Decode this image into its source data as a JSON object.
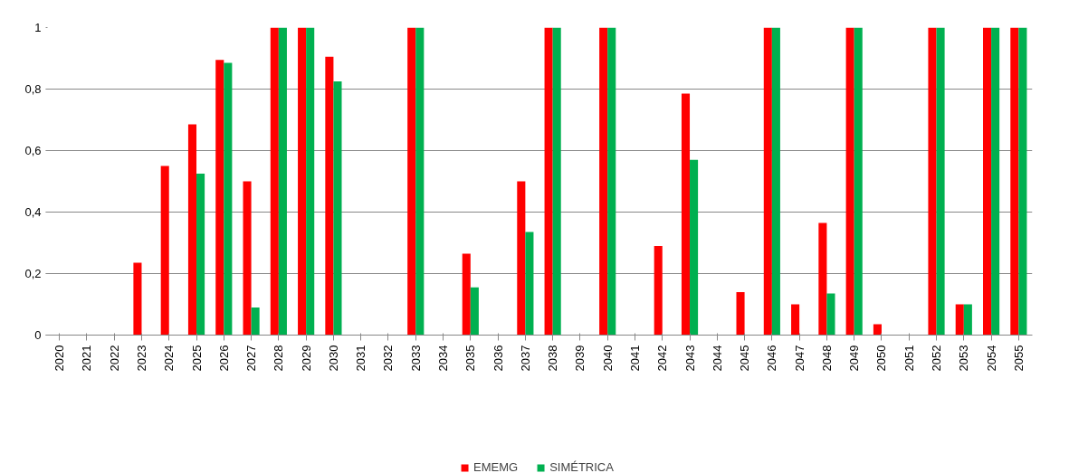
{
  "chart_data": {
    "type": "bar",
    "categories": [
      "2020",
      "2021",
      "2022",
      "2023",
      "2024",
      "2025",
      "2026",
      "2027",
      "2028",
      "2029",
      "2030",
      "2031",
      "2032",
      "2033",
      "2034",
      "2035",
      "2036",
      "2037",
      "2038",
      "2039",
      "2040",
      "2041",
      "2042",
      "2043",
      "2044",
      "2045",
      "2046",
      "2047",
      "2048",
      "2049",
      "2050",
      "2051",
      "2052",
      "2053",
      "2054",
      "2055"
    ],
    "series": [
      {
        "name": "EMEMG",
        "color": "#ff0000",
        "values": [
          0,
          0,
          0,
          0.235,
          0.55,
          0.685,
          0.895,
          0.5,
          1,
          1,
          0.905,
          0,
          0,
          1,
          0,
          0.265,
          0,
          0.5,
          1,
          0,
          1,
          0,
          0.29,
          0.785,
          0,
          0.14,
          1,
          0.1,
          0.365,
          1,
          0.035,
          0,
          1,
          0.1,
          1,
          1
        ]
      },
      {
        "name": "SIMÉTRICA",
        "color": "#00b050",
        "values": [
          0,
          0,
          0,
          0,
          0,
          0.525,
          0.885,
          0.09,
          1,
          1,
          0.825,
          0,
          0,
          1,
          0,
          0.155,
          0,
          0.335,
          1,
          0,
          1,
          0,
          0,
          0.57,
          0,
          0,
          1,
          0,
          0.135,
          1,
          0,
          0,
          1,
          0.1,
          1,
          1
        ]
      }
    ],
    "ylim": [
      0,
      1
    ],
    "yticks": [
      0,
      {
        "value": 0.2,
        "label": "0,2"
      },
      {
        "value": 0.4,
        "label": "0,4"
      },
      {
        "value": 0.6,
        "label": "0,6"
      },
      {
        "value": 0.8,
        "label": "0,8"
      },
      1
    ],
    "grid": "y",
    "legend": "bottom"
  }
}
